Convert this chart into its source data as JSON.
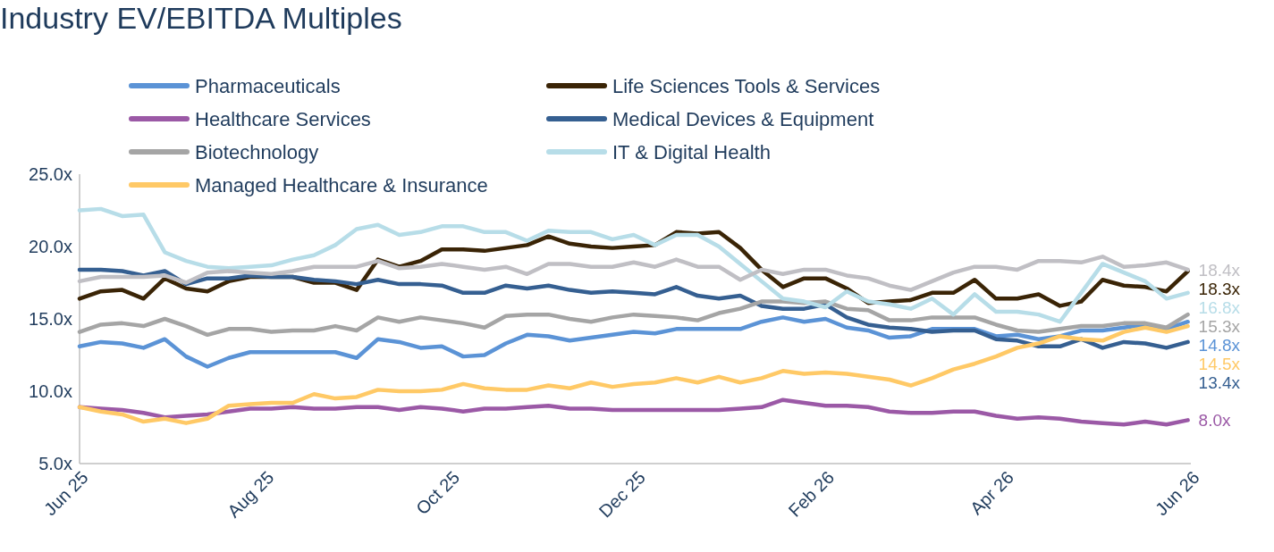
{
  "chart_data": {
    "type": "line",
    "title": "Industry EV/EBITDA Multiples",
    "x": [
      "2025-06-01",
      "2025-06-08",
      "2025-06-15",
      "2025-06-22",
      "2025-06-29",
      "2025-07-06",
      "2025-07-13",
      "2025-07-20",
      "2025-07-27",
      "2025-08-03",
      "2025-08-10",
      "2025-08-17",
      "2025-08-24",
      "2025-08-31",
      "2025-09-07",
      "2025-09-14",
      "2025-09-21",
      "2025-09-28",
      "2025-10-05",
      "2025-10-12",
      "2025-10-19",
      "2025-10-26",
      "2025-11-02",
      "2025-11-09",
      "2025-11-16",
      "2025-11-23",
      "2025-11-30",
      "2025-12-07",
      "2025-12-14",
      "2025-12-21",
      "2025-12-28",
      "2026-01-04",
      "2026-01-11",
      "2026-01-18",
      "2026-01-25",
      "2026-02-01",
      "2026-02-08",
      "2026-02-15",
      "2026-02-22",
      "2026-03-01",
      "2026-03-08",
      "2026-03-15",
      "2026-03-22",
      "2026-03-29",
      "2026-04-05",
      "2026-04-12",
      "2026-04-19",
      "2026-04-26",
      "2026-05-03",
      "2026-05-10",
      "2026-05-17",
      "2026-05-24",
      "2026-05-31"
    ],
    "xlim": [
      "2025-06-01",
      "2026-06-01"
    ],
    "xticks": [
      {
        "value": "2025-06-01",
        "label": "Jun 25"
      },
      {
        "value": "2025-08-01",
        "label": "Aug 25"
      },
      {
        "value": "2025-10-01",
        "label": "Oct 25"
      },
      {
        "value": "2025-12-01",
        "label": "Dec 25"
      },
      {
        "value": "2026-02-01",
        "label": "Feb 26"
      },
      {
        "value": "2026-04-01",
        "label": "Apr 26"
      },
      {
        "value": "2026-06-01",
        "label": "Jun 26"
      }
    ],
    "ylim": [
      5,
      25
    ],
    "yticks": [
      {
        "value": 5,
        "label": "5.0x"
      },
      {
        "value": 10,
        "label": "10.0x"
      },
      {
        "value": 15,
        "label": "15.0x"
      },
      {
        "value": 20,
        "label": "20.0x"
      },
      {
        "value": 25,
        "label": "25.0x"
      }
    ],
    "grid": false,
    "legend": "top",
    "marker": "none",
    "line_style": "solid",
    "series": [
      {
        "name": "Pharmaceuticals",
        "color": "#5b93d6",
        "values": [
          13.1,
          13.4,
          13.3,
          13.0,
          13.6,
          12.4,
          11.7,
          12.3,
          12.7,
          12.7,
          12.7,
          12.7,
          12.7,
          12.3,
          13.6,
          13.4,
          13.0,
          13.1,
          12.4,
          12.5,
          13.3,
          13.9,
          13.8,
          13.5,
          13.7,
          13.9,
          14.1,
          14.0,
          14.3,
          14.3,
          14.3,
          14.3,
          14.8,
          15.1,
          14.8,
          15.0,
          14.4,
          14.2,
          13.7,
          13.8,
          14.3,
          14.3,
          14.3,
          13.8,
          13.9,
          13.6,
          13.8,
          14.2,
          14.2,
          14.4,
          14.6,
          14.3,
          14.8
        ],
        "value_labels": [
          null,
          null,
          null,
          null,
          null,
          null,
          null,
          null,
          null,
          null,
          null,
          null,
          null,
          null,
          null,
          null,
          null,
          null,
          null,
          null,
          null,
          null,
          null,
          null,
          null,
          null,
          null,
          null,
          null,
          null,
          null,
          null,
          null,
          null,
          null,
          null,
          null,
          null,
          null,
          null,
          null,
          null,
          null,
          null,
          null,
          null,
          null,
          null,
          null,
          null,
          null,
          null,
          "14.8x"
        ]
      },
      {
        "name": "Life Sciences Tools & Services",
        "color": "#3a2406",
        "values": [
          16.4,
          16.9,
          17.0,
          16.4,
          17.8,
          17.1,
          16.9,
          17.6,
          17.9,
          17.9,
          17.9,
          17.5,
          17.5,
          17.0,
          19.1,
          18.6,
          19.0,
          19.8,
          19.8,
          19.7,
          19.9,
          20.1,
          20.7,
          20.2,
          20.0,
          19.9,
          20.0,
          20.1,
          21.0,
          20.9,
          21.0,
          19.9,
          18.4,
          17.2,
          17.8,
          17.8,
          17.1,
          16.1,
          16.2,
          16.3,
          16.8,
          16.8,
          17.7,
          16.4,
          16.4,
          16.7,
          15.9,
          16.2,
          17.7,
          17.3,
          17.2,
          16.9,
          18.3
        ],
        "value_labels": [
          null,
          null,
          null,
          null,
          null,
          null,
          null,
          null,
          null,
          null,
          null,
          null,
          null,
          null,
          null,
          null,
          null,
          null,
          null,
          null,
          null,
          null,
          null,
          null,
          null,
          null,
          null,
          null,
          null,
          null,
          null,
          null,
          null,
          null,
          null,
          null,
          null,
          null,
          null,
          null,
          null,
          null,
          null,
          null,
          null,
          null,
          null,
          null,
          null,
          null,
          null,
          null,
          "18.3x"
        ]
      },
      {
        "name": "Healthcare Services",
        "color": "#9b59a6",
        "values": [
          8.9,
          8.8,
          8.7,
          8.5,
          8.2,
          8.3,
          8.4,
          8.6,
          8.8,
          8.8,
          8.9,
          8.8,
          8.8,
          8.9,
          8.9,
          8.7,
          8.9,
          8.8,
          8.6,
          8.8,
          8.8,
          8.9,
          9.0,
          8.8,
          8.8,
          8.7,
          8.7,
          8.7,
          8.7,
          8.7,
          8.7,
          8.8,
          8.9,
          9.4,
          9.2,
          9.0,
          9.0,
          8.9,
          8.6,
          8.5,
          8.5,
          8.6,
          8.6,
          8.3,
          8.1,
          8.2,
          8.1,
          7.9,
          7.8,
          7.7,
          7.9,
          7.7,
          8.0
        ],
        "value_labels": [
          null,
          null,
          null,
          null,
          null,
          null,
          null,
          null,
          null,
          null,
          null,
          null,
          null,
          null,
          null,
          null,
          null,
          null,
          null,
          null,
          null,
          null,
          null,
          null,
          null,
          null,
          null,
          null,
          null,
          null,
          null,
          null,
          null,
          null,
          null,
          null,
          null,
          null,
          null,
          null,
          null,
          null,
          null,
          null,
          null,
          null,
          null,
          null,
          null,
          null,
          null,
          null,
          "8.0x"
        ]
      },
      {
        "name": "Medical Devices & Equipment",
        "color": "#355f91",
        "values": [
          18.4,
          18.4,
          18.3,
          18.0,
          18.3,
          17.4,
          17.8,
          17.8,
          18.0,
          17.9,
          17.9,
          17.7,
          17.6,
          17.4,
          17.7,
          17.4,
          17.4,
          17.3,
          16.8,
          16.8,
          17.3,
          17.1,
          17.3,
          17.0,
          16.8,
          16.9,
          16.8,
          16.7,
          17.2,
          16.6,
          16.4,
          16.6,
          15.9,
          15.7,
          15.7,
          16.0,
          15.1,
          14.6,
          14.4,
          14.3,
          14.1,
          14.2,
          14.2,
          13.6,
          13.5,
          13.1,
          13.1,
          13.6,
          13.0,
          13.4,
          13.3,
          13.0,
          13.4
        ],
        "value_labels": [
          null,
          null,
          null,
          null,
          null,
          null,
          null,
          null,
          null,
          null,
          null,
          null,
          null,
          null,
          null,
          null,
          null,
          null,
          null,
          null,
          null,
          null,
          null,
          null,
          null,
          null,
          null,
          null,
          null,
          null,
          null,
          null,
          null,
          null,
          null,
          null,
          null,
          null,
          null,
          null,
          null,
          null,
          null,
          null,
          null,
          null,
          null,
          null,
          null,
          null,
          null,
          null,
          "13.4x"
        ]
      },
      {
        "name": "Biotechnology",
        "color": "#a5a5a5",
        "values": [
          14.1,
          14.6,
          14.7,
          14.5,
          15.0,
          14.5,
          13.9,
          14.3,
          14.3,
          14.1,
          14.2,
          14.2,
          14.5,
          14.2,
          15.1,
          14.8,
          15.1,
          14.9,
          14.7,
          14.4,
          15.2,
          15.3,
          15.3,
          15.0,
          14.8,
          15.1,
          15.3,
          15.2,
          15.1,
          14.9,
          15.4,
          15.7,
          16.2,
          16.2,
          16.1,
          16.2,
          15.7,
          15.6,
          14.9,
          14.9,
          15.1,
          15.1,
          15.1,
          14.6,
          14.2,
          14.1,
          14.3,
          14.5,
          14.5,
          14.7,
          14.7,
          14.4,
          15.3
        ],
        "value_labels": [
          null,
          null,
          null,
          null,
          null,
          null,
          null,
          null,
          null,
          null,
          null,
          null,
          null,
          null,
          null,
          null,
          null,
          null,
          null,
          null,
          null,
          null,
          null,
          null,
          null,
          null,
          null,
          null,
          null,
          null,
          null,
          null,
          null,
          null,
          null,
          null,
          null,
          null,
          null,
          null,
          null,
          null,
          null,
          null,
          null,
          null,
          null,
          null,
          null,
          null,
          null,
          null,
          "15.3x"
        ]
      },
      {
        "name": "IT & Digital Health",
        "color": "#b7dde8",
        "values": [
          22.5,
          22.6,
          22.1,
          22.2,
          19.6,
          19.0,
          18.6,
          18.5,
          18.6,
          18.7,
          19.1,
          19.4,
          20.1,
          21.2,
          21.5,
          20.8,
          21.0,
          21.4,
          21.4,
          21.0,
          21.0,
          20.4,
          21.1,
          21.0,
          21.0,
          20.5,
          20.8,
          20.1,
          20.8,
          20.8,
          20.0,
          18.8,
          17.6,
          16.4,
          16.2,
          15.8,
          16.9,
          16.2,
          16.0,
          15.7,
          16.4,
          15.3,
          16.7,
          15.5,
          15.5,
          15.3,
          14.8,
          16.8,
          18.8,
          18.2,
          17.6,
          16.4,
          16.8
        ],
        "value_labels": [
          null,
          null,
          null,
          null,
          null,
          null,
          null,
          null,
          null,
          null,
          null,
          null,
          null,
          null,
          null,
          null,
          null,
          null,
          null,
          null,
          null,
          null,
          null,
          null,
          null,
          null,
          null,
          null,
          null,
          null,
          null,
          null,
          null,
          null,
          null,
          null,
          null,
          null,
          null,
          null,
          null,
          null,
          null,
          null,
          null,
          null,
          null,
          null,
          null,
          null,
          null,
          null,
          "16.8x"
        ]
      },
      {
        "name": "Managed Healthcare & Insurance",
        "color": "#ffc966",
        "values": [
          8.9,
          8.6,
          8.4,
          7.9,
          8.1,
          7.8,
          8.1,
          9.0,
          9.1,
          9.2,
          9.2,
          9.8,
          9.5,
          9.6,
          10.1,
          10.0,
          10.0,
          10.1,
          10.5,
          10.2,
          10.1,
          10.1,
          10.4,
          10.2,
          10.6,
          10.3,
          10.5,
          10.6,
          10.9,
          10.6,
          11.0,
          10.6,
          10.9,
          11.4,
          11.2,
          11.3,
          11.2,
          11.0,
          10.8,
          10.4,
          10.9,
          11.5,
          11.9,
          12.4,
          13.0,
          13.3,
          13.8,
          13.6,
          13.5,
          14.1,
          14.4,
          14.1,
          14.5
        ],
        "value_labels": [
          null,
          null,
          null,
          null,
          null,
          null,
          null,
          null,
          null,
          null,
          null,
          null,
          null,
          null,
          null,
          null,
          null,
          null,
          null,
          null,
          null,
          null,
          null,
          null,
          null,
          null,
          null,
          null,
          null,
          null,
          null,
          null,
          null,
          null,
          null,
          null,
          null,
          null,
          null,
          null,
          null,
          null,
          null,
          null,
          null,
          null,
          null,
          null,
          null,
          null,
          null,
          null,
          "14.5x"
        ]
      },
      {
        "color": "#c0bfc4",
        "values": [
          17.6,
          17.9,
          17.9,
          17.9,
          18.0,
          17.5,
          18.2,
          18.3,
          18.2,
          18.1,
          18.3,
          18.6,
          18.6,
          18.6,
          19.0,
          18.5,
          18.6,
          18.8,
          18.6,
          18.4,
          18.6,
          18.1,
          18.8,
          18.8,
          18.6,
          18.6,
          18.9,
          18.6,
          19.1,
          18.6,
          18.6,
          17.7,
          18.4,
          18.1,
          18.4,
          18.4,
          18.0,
          17.8,
          17.3,
          17.0,
          17.6,
          18.2,
          18.6,
          18.6,
          18.4,
          19.0,
          19.0,
          18.9,
          19.3,
          18.6,
          18.7,
          18.9,
          18.4
        ],
        "value_labels": [
          null,
          null,
          null,
          null,
          null,
          null,
          null,
          null,
          null,
          null,
          null,
          null,
          null,
          null,
          null,
          null,
          null,
          null,
          null,
          null,
          null,
          null,
          null,
          null,
          null,
          null,
          null,
          null,
          null,
          null,
          null,
          null,
          null,
          null,
          null,
          null,
          null,
          null,
          null,
          null,
          null,
          null,
          null,
          null,
          null,
          null,
          null,
          null,
          null,
          null,
          null,
          null,
          "18.4x"
        ]
      }
    ]
  }
}
